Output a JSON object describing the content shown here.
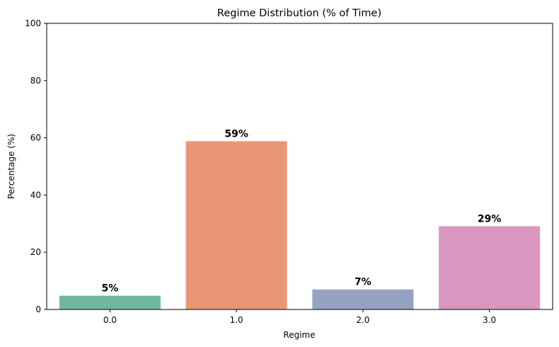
{
  "chart_data": {
    "type": "bar",
    "title": "Regime Distribution (% of Time)",
    "xlabel": "Regime",
    "ylabel": "Percentage (%)",
    "categories": [
      "0.0",
      "1.0",
      "2.0",
      "3.0"
    ],
    "values": [
      4.8,
      58.8,
      7.0,
      29.1
    ],
    "data_labels": [
      "5%",
      "59%",
      "7%",
      "29%"
    ],
    "colors": [
      "#72b6a1",
      "#e99675",
      "#95a3c3",
      "#db96c0"
    ],
    "ylim": [
      0,
      100
    ],
    "yticks": [
      0,
      20,
      40,
      60,
      80,
      100
    ],
    "grid": false,
    "legend": "none"
  }
}
